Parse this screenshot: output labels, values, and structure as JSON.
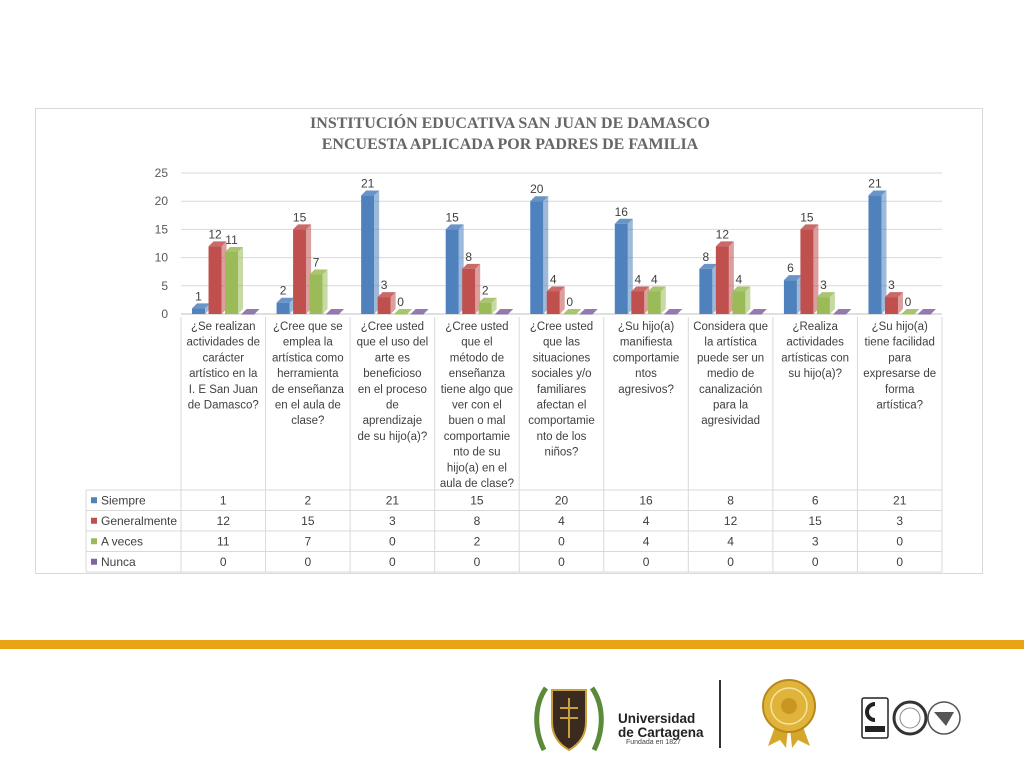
{
  "chart_data": {
    "type": "bar",
    "title": [
      "INSTITUCIÓN  EDUCATIVA  SAN JUAN DE DAMASCO",
      "ENCUESTA APLICADA POR PADRES DE FAMILIA"
    ],
    "categories": [
      [
        "¿Se realizan",
        "actividades de",
        "carácter",
        "artístico en la",
        "I. E San Juan",
        "de Damasco?"
      ],
      [
        "¿Cree que se",
        "emplea la",
        "artística como",
        "herramienta",
        "de enseñanza",
        "en el aula de",
        "clase?"
      ],
      [
        "¿Cree usted",
        "que el uso del",
        "arte es",
        "beneficioso",
        "en el proceso",
        "de",
        "aprendizaje",
        "de su hijo(a)?"
      ],
      [
        "¿Cree usted",
        "que el",
        "método de",
        "enseñanza",
        "tiene algo que",
        "ver con el",
        "buen o mal",
        "comportamie",
        "nto de su",
        "hijo(a) en el",
        "aula de clase?"
      ],
      [
        "¿Cree usted",
        "que las",
        "situaciones",
        "sociales y/o",
        "familiares",
        "afectan el",
        "comportamie",
        "nto de los",
        "niños?"
      ],
      [
        "¿Su hijo(a)",
        "manifiesta",
        "comportamie",
        "ntos",
        "agresivos?"
      ],
      [
        "Considera que",
        "la artística",
        "puede ser un",
        "medio de",
        "canalización",
        "para la",
        "agresividad"
      ],
      [
        "¿Realiza",
        "actividades",
        "artísticas con",
        "su hijo(a)?"
      ],
      [
        "¿Su hijo(a)",
        "tiene facilidad",
        "para",
        "expresarse de",
        "forma",
        "artística?"
      ]
    ],
    "series": [
      {
        "name": "Siempre",
        "color": "#4f81bd",
        "values": [
          1,
          2,
          21,
          15,
          20,
          16,
          8,
          6,
          21
        ]
      },
      {
        "name": "Generalmente",
        "color": "#c0504d",
        "values": [
          12,
          15,
          3,
          8,
          4,
          4,
          12,
          15,
          3
        ]
      },
      {
        "name": "A veces",
        "color": "#9bbb59",
        "values": [
          11,
          7,
          0,
          2,
          0,
          4,
          4,
          3,
          0
        ]
      },
      {
        "name": "Nunca",
        "color": "#8064a2",
        "values": [
          0,
          0,
          0,
          0,
          0,
          0,
          0,
          0,
          0
        ]
      }
    ],
    "data_labels_series": [
      "Siempre",
      "Generalmente",
      "A veces"
    ],
    "yticks": [
      "0",
      "5",
      "10",
      "15",
      "20",
      "25"
    ],
    "ylim": [
      0,
      25
    ],
    "grid": true,
    "legend": "data-table"
  },
  "footer": {
    "university_line1": "Universidad",
    "university_line2": "de Cartagena",
    "founded": "Fundada en 1827",
    "brand_color": "#e8a317"
  }
}
